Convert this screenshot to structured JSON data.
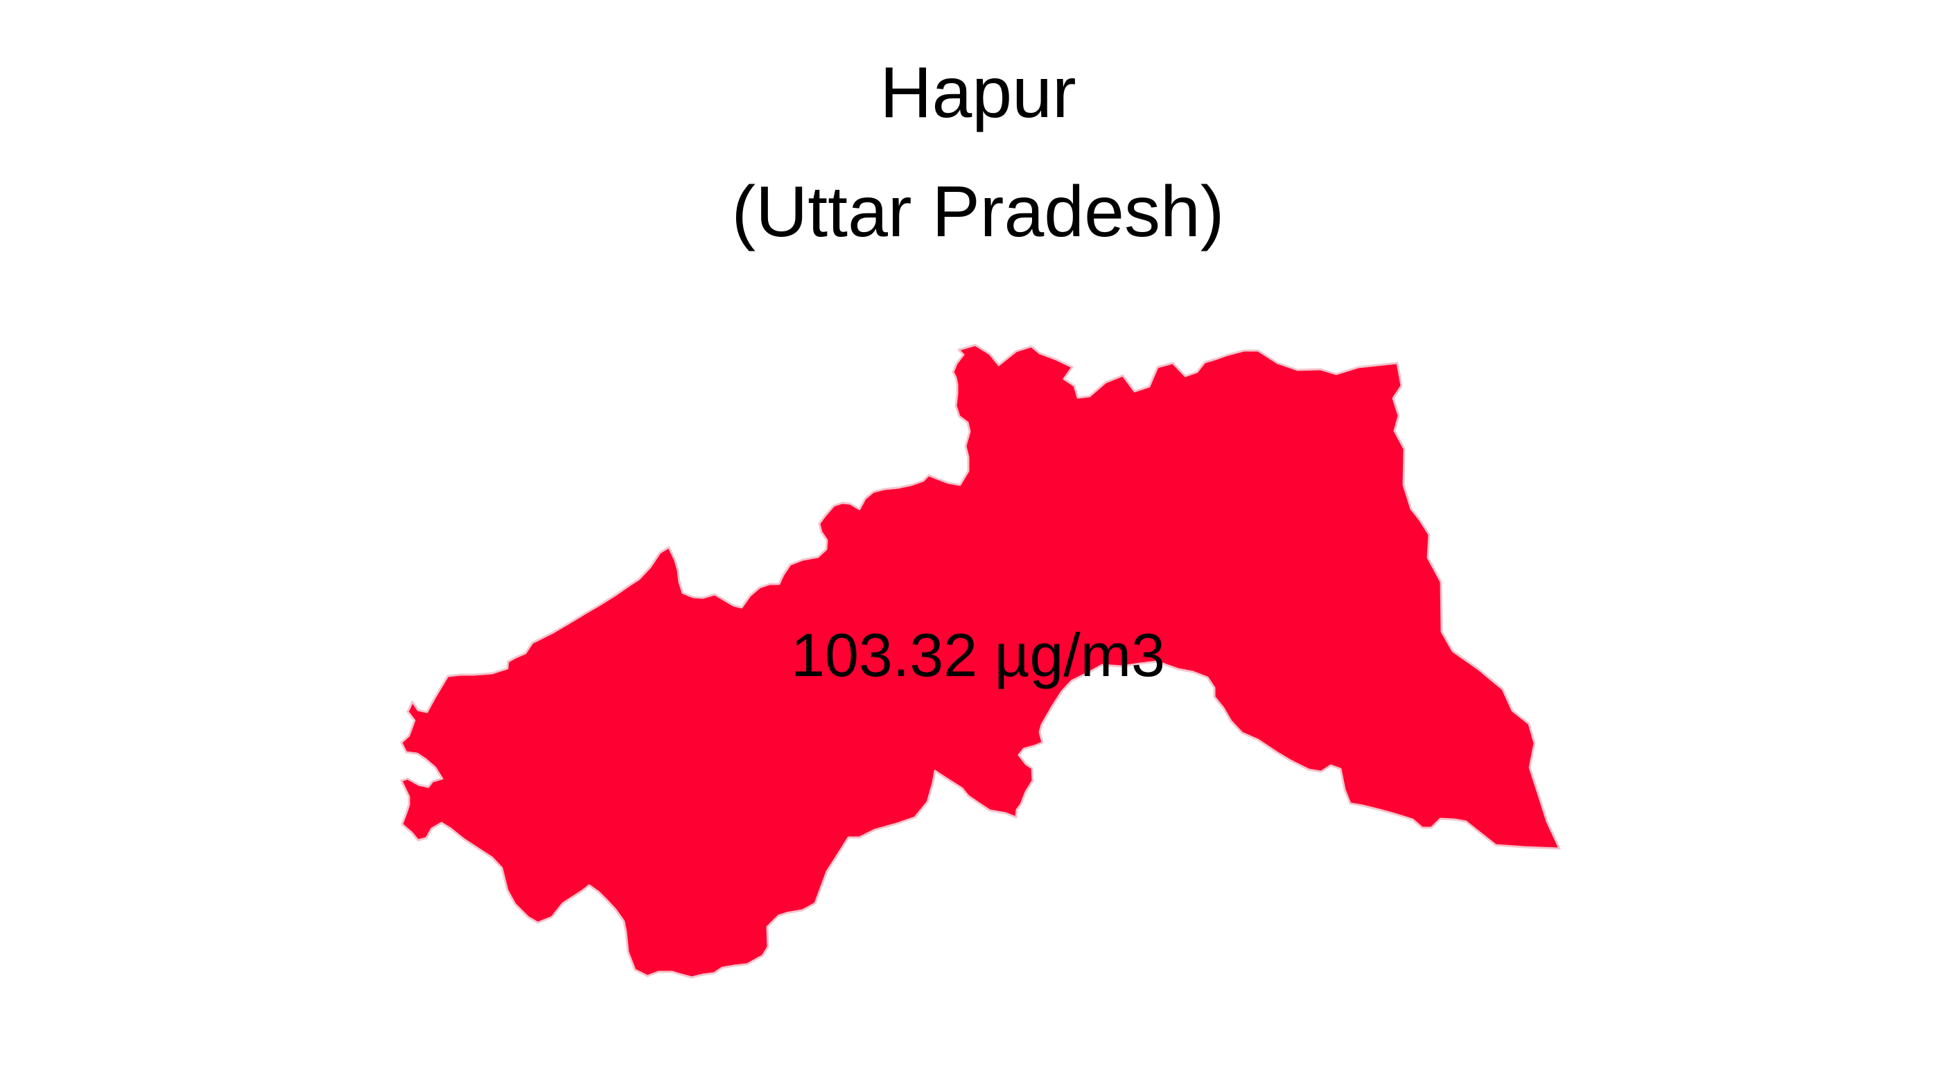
{
  "title": {
    "district": "Hapur",
    "state": "(Uttar Pradesh)"
  },
  "map": {
    "region": "Hapur",
    "fill_color": "#ff0033",
    "outline_color": "#f2c4cc"
  },
  "value_label": "103.32 µg/m3"
}
